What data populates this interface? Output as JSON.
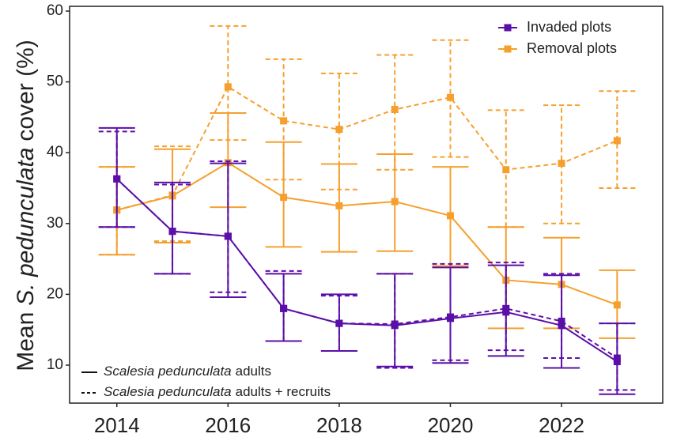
{
  "chart_data": {
    "type": "errorbar-line",
    "ylabel": [
      "Mean",
      "S. pedunculata",
      "cover (%)"
    ],
    "x": [
      2014,
      2015,
      2016,
      2017,
      2018,
      2019,
      2020,
      2021,
      2022,
      2023
    ],
    "xlim": [
      2013.15,
      2023.82
    ],
    "xticks": [
      2014,
      2016,
      2018,
      2020,
      2022
    ],
    "ylim": [
      4.64,
      60.67
    ],
    "yticks": [
      10,
      20,
      30,
      40,
      50,
      60
    ],
    "grid": false,
    "color_legend": {
      "corner": "top-right",
      "items": [
        {
          "name": "Invaded plots",
          "color": "#5b0fa8"
        },
        {
          "name": "Removal plots",
          "color": "#f5a02e"
        }
      ]
    },
    "linetype_legend": {
      "corner": "bottom-left",
      "items": [
        {
          "italic": "Scalesia pedunculata",
          "text": "adults",
          "linetype": "solid"
        },
        {
          "italic": "Scalesia pedunculata",
          "text": "adults + recruits",
          "linetype": "dashed"
        }
      ]
    },
    "series": [
      {
        "group": 1,
        "linetype": "solid",
        "values": [
          31.9,
          33.9,
          38.6,
          33.7,
          32.5,
          33.1,
          31.1,
          22,
          21.4,
          18.5
        ],
        "lower": [
          25.6,
          27.3,
          32.3,
          26.7,
          26,
          26.1,
          24,
          15.2,
          15.2,
          13.8
        ],
        "upper": [
          38,
          40.5,
          45.6,
          41.5,
          38.4,
          39.8,
          38,
          29.5,
          28,
          23.4
        ]
      },
      {
        "group": 1,
        "linetype": "dashed",
        "values": [
          31.9,
          34,
          49.3,
          44.5,
          43.3,
          46.1,
          47.8,
          37.6,
          38.5,
          41.7
        ],
        "lower": [
          25.6,
          27.5,
          41.8,
          36.2,
          34.8,
          37.6,
          39.4,
          29.5,
          30,
          35
        ],
        "upper": [
          38,
          40.9,
          57.9,
          53.2,
          51.2,
          53.8,
          55.9,
          46,
          46.7,
          48.7
        ]
      },
      {
        "group": 0,
        "linetype": "solid",
        "values": [
          36.3,
          28.9,
          28.2,
          18,
          15.9,
          15.6,
          16.6,
          17.5,
          15.6,
          10.5
        ],
        "lower": [
          29.5,
          22.9,
          19.6,
          13.4,
          12,
          9.8,
          10.3,
          11.3,
          9.6,
          5.9
        ],
        "upper": [
          43.5,
          35.8,
          38.5,
          22.9,
          20,
          22.9,
          23.8,
          24.1,
          22.7,
          15.9
        ]
      },
      {
        "group": 0,
        "linetype": "dashed",
        "values": [
          36.3,
          28.9,
          28.2,
          18,
          15.9,
          15.8,
          16.8,
          18,
          16.2,
          11
        ],
        "lower": [
          29.5,
          22.9,
          20.3,
          13.4,
          12,
          9.6,
          10.7,
          12.1,
          11,
          6.5
        ],
        "upper": [
          43,
          35.5,
          38.8,
          23.3,
          19.8,
          22.9,
          24.3,
          24.5,
          22.9,
          15.9
        ]
      }
    ]
  }
}
